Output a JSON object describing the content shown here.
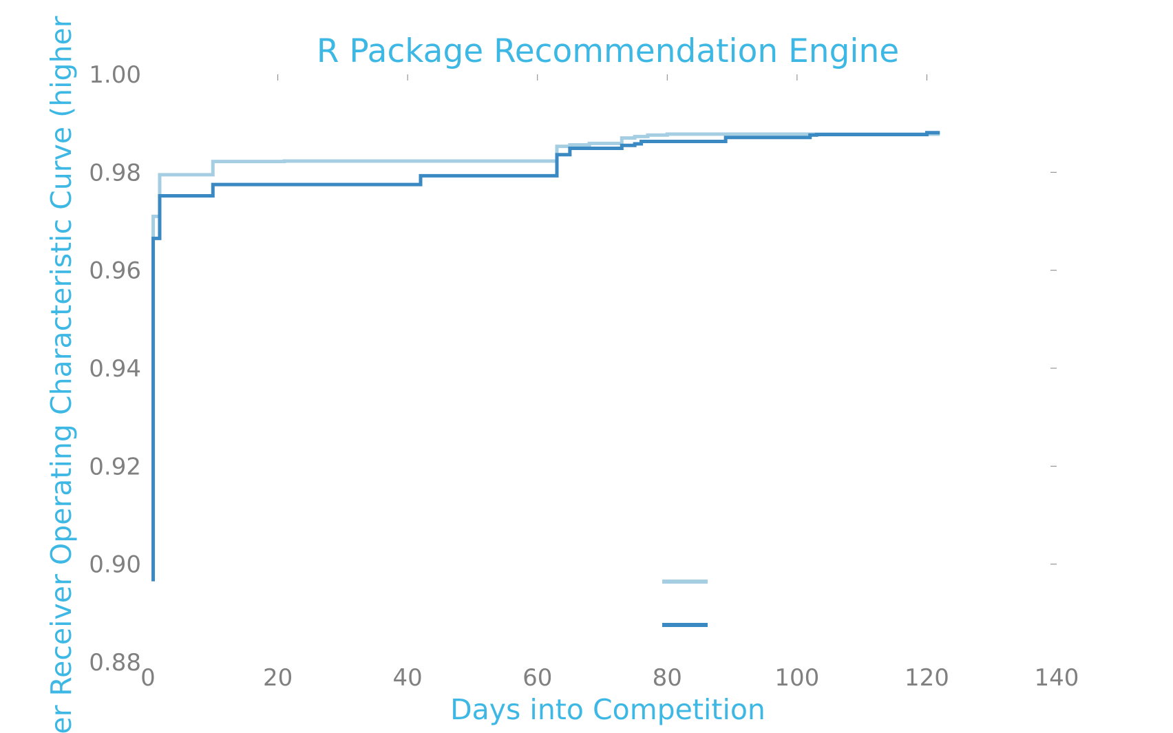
{
  "colors": {
    "accent": "#3db7e4",
    "tick": "#808080",
    "series_light": "#a6cee3",
    "series_dark": "#3a89c2"
  },
  "chart_data": {
    "type": "line",
    "title": "R Package Recommendation Engine",
    "xlabel": "Days into Competition",
    "ylabel": "er Receiver Operating Characteristic Curve (higher",
    "xlim": [
      0,
      140
    ],
    "ylim": [
      0.88,
      1.0
    ],
    "xticks": [
      "0",
      "20",
      "40",
      "60",
      "80",
      "100",
      "120",
      "140"
    ],
    "yticks": [
      "0.88",
      "0.90",
      "0.92",
      "0.94",
      "0.96",
      "0.98",
      "1.00"
    ],
    "grid": false,
    "legend": "lower-center",
    "step": true,
    "series": [
      {
        "color": "#a6cee3",
        "x": [
          0.8,
          0.8,
          1.8,
          10,
          21,
          63,
          65,
          68,
          73,
          75,
          77,
          80,
          103,
          122
        ],
        "y": [
          0.9665,
          0.971,
          0.9795,
          0.9822,
          0.9823,
          0.9853,
          0.9856,
          0.9859,
          0.987,
          0.9873,
          0.9876,
          0.9878,
          0.9878,
          0.9878
        ]
      },
      {
        "color": "#3a89c2",
        "x": [
          0.8,
          0.8,
          1.8,
          10,
          42,
          63,
          65,
          73,
          75,
          76,
          89,
          102,
          103,
          120,
          122
        ],
        "y": [
          0.8965,
          0.9665,
          0.9752,
          0.9775,
          0.9793,
          0.9836,
          0.9849,
          0.9855,
          0.9858,
          0.9863,
          0.9871,
          0.9876,
          0.9877,
          0.9881,
          0.9881
        ]
      }
    ]
  }
}
